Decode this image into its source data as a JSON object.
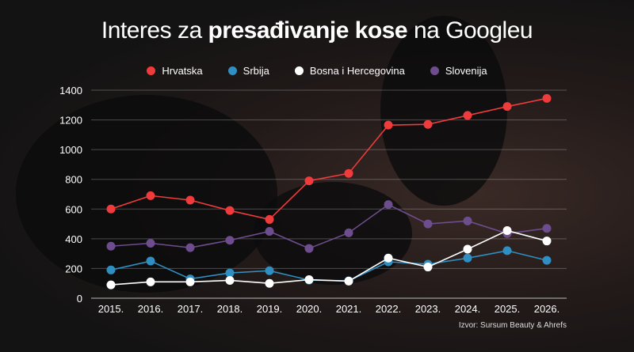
{
  "title": {
    "pre": "Interes za ",
    "bold": "presađivanje kose",
    "post": " na Googleu"
  },
  "source": "Izvor: Sursum Beauty & Ahrefs",
  "chart_data": {
    "type": "line",
    "categories": [
      "2015.",
      "2016.",
      "2017.",
      "2018.",
      "2019.",
      "2020.",
      "2021.",
      "2022.",
      "2023.",
      "2024.",
      "2025.",
      "2026."
    ],
    "ylim": [
      0,
      1400
    ],
    "yticks": [
      0,
      200,
      400,
      600,
      800,
      1000,
      1200,
      1400
    ],
    "grid": true,
    "legend": "top",
    "series": [
      {
        "name": "Hrvatska",
        "color": "#ef3b3b",
        "values": [
          600,
          690,
          660,
          590,
          530,
          790,
          840,
          1165,
          1170,
          1230,
          1290,
          1345
        ]
      },
      {
        "name": "Srbija",
        "color": "#2f8fc2",
        "values": [
          190,
          250,
          130,
          170,
          185,
          122,
          117,
          245,
          229,
          270,
          320,
          255
        ]
      },
      {
        "name": "Bosna i Hercegovina",
        "color": "#ffffff",
        "values": [
          90,
          110,
          110,
          120,
          100,
          125,
          115,
          270,
          210,
          330,
          455,
          385
        ]
      },
      {
        "name": "Slovenija",
        "color": "#6e4d8e",
        "values": [
          350,
          370,
          340,
          390,
          450,
          335,
          440,
          630,
          500,
          520,
          435,
          470
        ]
      }
    ]
  }
}
